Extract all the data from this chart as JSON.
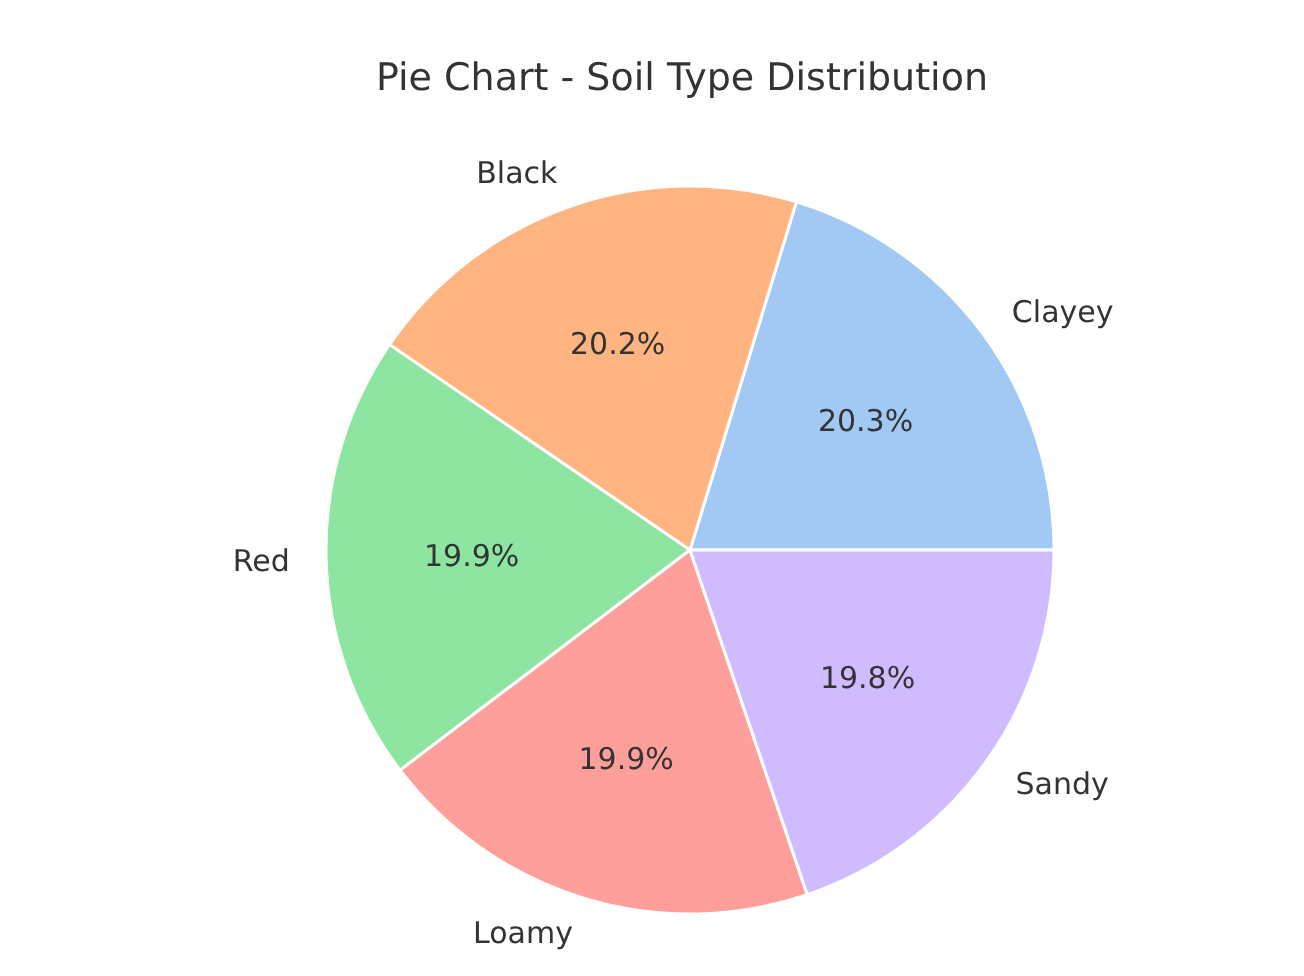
{
  "chart_data": {
    "type": "pie",
    "title": "Pie Chart - Soil Type Distribution",
    "categories": [
      "Clayey",
      "Black",
      "Red",
      "Loamy",
      "Sandy"
    ],
    "values": [
      20.3,
      20.2,
      19.9,
      19.9,
      19.8
    ],
    "value_labels": [
      "20.3%",
      "20.2%",
      "19.9%",
      "19.9%",
      "19.8%"
    ],
    "colors": [
      "#a1c9f4",
      "#ffb482",
      "#8de5a1",
      "#ff9f9b",
      "#d0bbff"
    ]
  }
}
